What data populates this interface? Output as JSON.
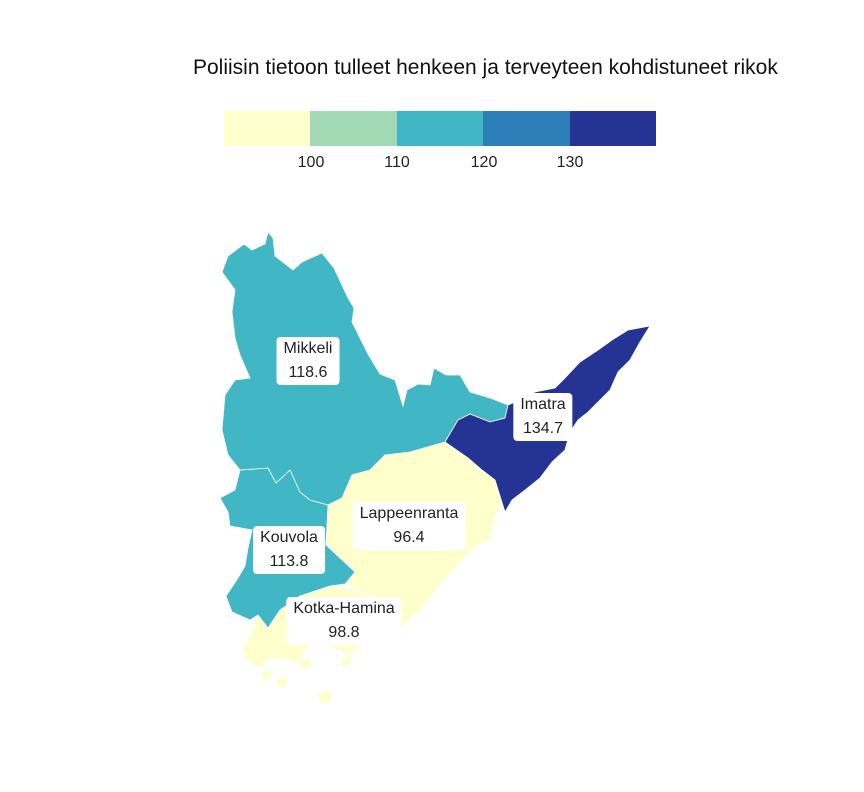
{
  "title": "Poliisin tietoon tulleet henkeen ja terveyteen kohdistuneet rikok",
  "legend": {
    "colors": [
      "#ffffcc",
      "#a1dab4",
      "#41b6c4",
      "#2c7fb8",
      "#253494"
    ],
    "ticks": [
      "100",
      "110",
      "120",
      "130"
    ]
  },
  "regions": [
    {
      "name": "Mikkeli",
      "value": "118.6",
      "color": "#41b6c4"
    },
    {
      "name": "Imatra",
      "value": "134.7",
      "color": "#253494"
    },
    {
      "name": "Lappeenranta",
      "value": "96.4",
      "color": "#ffffcc"
    },
    {
      "name": "Kouvola",
      "value": "113.8",
      "color": "#41b6c4"
    },
    {
      "name": "Kotka-Hamina",
      "value": "98.8",
      "color": "#ffffcc"
    }
  ]
}
